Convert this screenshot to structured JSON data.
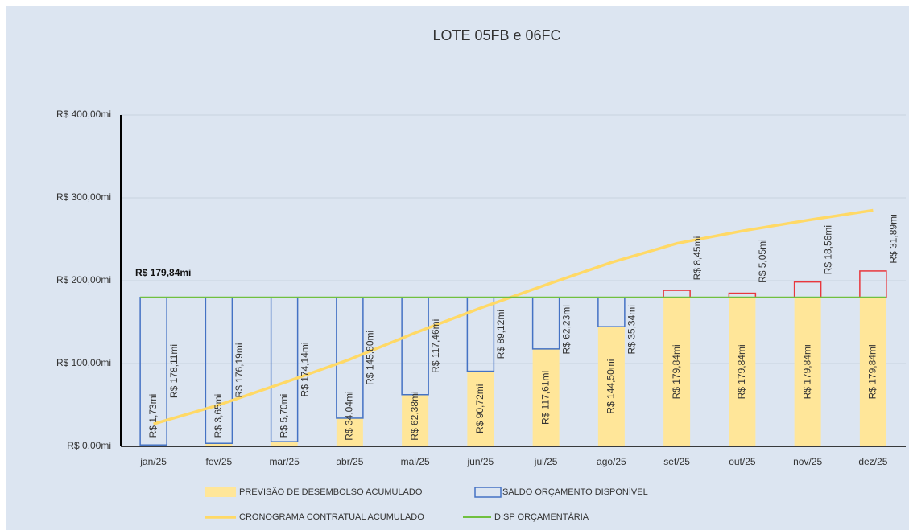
{
  "chart_data": {
    "type": "bar",
    "title": "LOTE 05FB e 06FC",
    "categories": [
      "jan/25",
      "fev/25",
      "mar/25",
      "abr/25",
      "mai/25",
      "jun/25",
      "jul/25",
      "ago/25",
      "set/25",
      "out/25",
      "nov/25",
      "dez/25"
    ],
    "series": [
      {
        "name": "PREVISÃO DE DESEMBOLSO ACUMULADO",
        "color": "#ffe699",
        "values": [
          1.73,
          3.65,
          5.7,
          34.04,
          62.38,
          90.72,
          117.61,
          144.5,
          179.84,
          179.84,
          179.84,
          179.84
        ],
        "value_labels": [
          "R$ 1,73mi",
          "R$ 3,65mi",
          "R$ 5,70mi",
          "R$ 34,04mi",
          "R$ 62,38mi",
          "R$ 90,72mi",
          "R$ 117,61mi",
          "R$ 144,50mi",
          "R$ 179,84mi",
          "R$ 179,84mi",
          "R$ 179,84mi",
          "R$ 179,84mi"
        ]
      },
      {
        "name": "SALDO ORÇAMENTO DISPONÍVEL",
        "color": "#4472c4",
        "colors": [
          "#4472c4",
          "#4472c4",
          "#4472c4",
          "#4472c4",
          "#4472c4",
          "#4472c4",
          "#4472c4",
          "#4472c4",
          "#e8373d",
          "#e8373d",
          "#e8373d",
          "#e8373d"
        ],
        "values": [
          178.11,
          176.19,
          174.14,
          145.8,
          117.46,
          89.12,
          62.23,
          35.34,
          8.45,
          5.05,
          18.56,
          31.89
        ],
        "value_labels": [
          "R$ 178,11mi",
          "R$ 176,19mi",
          "R$ 174,14mi",
          "R$ 145,80mi",
          "R$ 117,46mi",
          "R$ 89,12mi",
          "R$ 62,23mi",
          "R$ 35,34mi",
          "R$ 8,45mi",
          "R$ 5,05mi",
          "R$ 18,56mi",
          "R$ 31,89mi"
        ]
      },
      {
        "name": "CRONOGRAMA CONTRATUAL ACUMULADO",
        "type": "line",
        "color": "#ffd966",
        "values": [
          27,
          50,
          77,
          105,
          137,
          167,
          195,
          222,
          245,
          260,
          273,
          285
        ]
      }
    ],
    "disp": {
      "name": "DISP ORÇAMENTÁRIA",
      "color": "#70c040",
      "value": 179.84,
      "label": "R$ 179,84mi"
    },
    "ylim": [
      0,
      400
    ],
    "yticks": [
      {
        "value": 0,
        "label": "R$ 0,00mi"
      },
      {
        "value": 100,
        "label": "R$ 100,00mi"
      },
      {
        "value": 200,
        "label": "R$ 200,00mi"
      },
      {
        "value": 300,
        "label": "R$ 300,00mi"
      },
      {
        "value": 400,
        "label": "R$ 400,00mi"
      }
    ],
    "grid": true
  }
}
